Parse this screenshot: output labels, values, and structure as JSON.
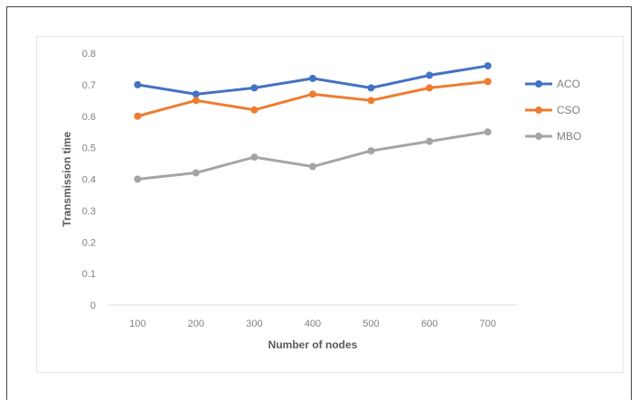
{
  "chart_data": {
    "type": "line",
    "categories": [
      "100",
      "200",
      "300",
      "400",
      "500",
      "600",
      "700"
    ],
    "series": [
      {
        "name": "ACO",
        "color": "#4472c4",
        "values": [
          0.7,
          0.67,
          0.69,
          0.72,
          0.69,
          0.73,
          0.76
        ]
      },
      {
        "name": "CSO",
        "color": "#ed7d31",
        "values": [
          0.6,
          0.65,
          0.62,
          0.67,
          0.65,
          0.69,
          0.71
        ]
      },
      {
        "name": "MBO",
        "color": "#a5a5a5",
        "values": [
          0.4,
          0.42,
          0.47,
          0.44,
          0.49,
          0.52,
          0.55
        ]
      }
    ],
    "yticks": [
      "0",
      "0.1",
      "0.2",
      "0.3",
      "0.4",
      "0.5",
      "0.6",
      "0.7",
      "0.8"
    ],
    "xlabel": "Number of nodes",
    "ylabel": "Transmission time",
    "ylim": [
      0,
      0.8
    ],
    "grid": false,
    "legend_position": "right"
  }
}
